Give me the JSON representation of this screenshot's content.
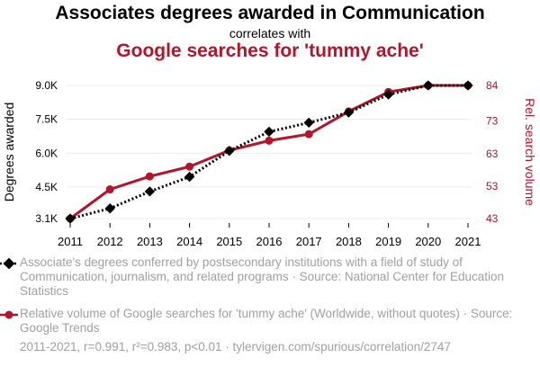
{
  "header": {
    "title": "Associates degrees awarded in Communication",
    "connector": "correlates with",
    "subtitle": "Google searches for 'tummy ache'"
  },
  "legend": {
    "series1": "Associate's degrees conferred by postsecondary institutions with a field of study of Communication, journalism, and related programs · Source: National Center for Education Statistics",
    "series2": "Relative volume of Google searches for 'tummy ache' (Worldwide, without quotes) · Source: Google Trends"
  },
  "footer": "2011-2021, r=0.991, r²=0.983, p<0.01 · tylervigen.com/spurious/correlation/2747",
  "colors": {
    "series1": "#000000",
    "series2": "#b3152b"
  },
  "chart_data": {
    "type": "line",
    "x": [
      2011,
      2012,
      2013,
      2014,
      2015,
      2016,
      2017,
      2018,
      2019,
      2020,
      2021
    ],
    "ylabel": "Degrees awarded",
    "y2label": "Rel. search volume",
    "ylim": [
      3100,
      9000
    ],
    "y2lim": [
      43,
      84
    ],
    "yticks": [
      "3.1K",
      "4.5K",
      "6.0K",
      "7.5K",
      "9.0K"
    ],
    "yticks_values": [
      3100,
      4500,
      6000,
      7500,
      9000
    ],
    "y2ticks": [
      "43",
      "53",
      "63",
      "73",
      "84"
    ],
    "y2ticks_values": [
      43,
      53,
      63,
      73,
      84
    ],
    "grid": "horizontal",
    "series": [
      {
        "values": [
          3100,
          3550,
          4300,
          4950,
          6100,
          6950,
          7350,
          7800,
          8600,
          9000,
          9000
        ],
        "axis": "left",
        "style": "dotted",
        "marker": "diamond"
      },
      {
        "values": [
          43,
          52,
          56,
          59,
          64,
          67,
          69,
          76,
          82,
          84,
          84
        ],
        "axis": "right",
        "style": "solid",
        "marker": "circle"
      }
    ]
  }
}
